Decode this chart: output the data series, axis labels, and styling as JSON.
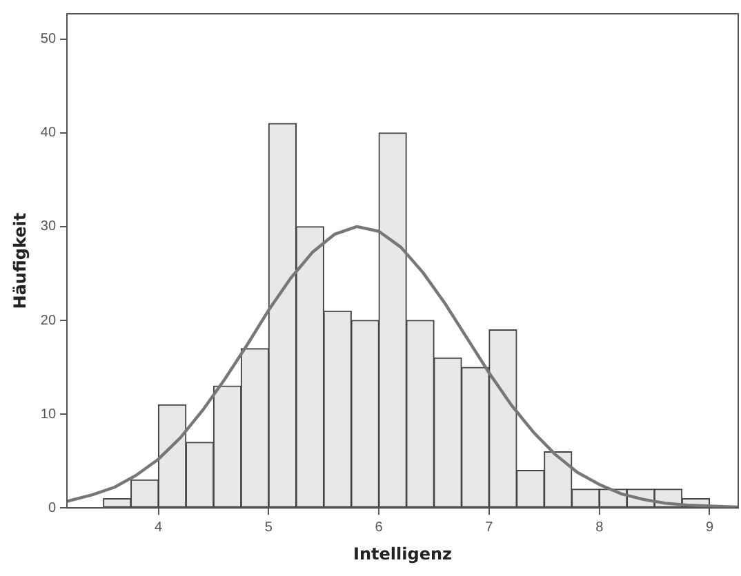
{
  "chart_data": {
    "type": "histogram",
    "xlabel": "Intelligenz",
    "ylabel": "Häufigkeit",
    "bins": [
      3.5,
      3.75,
      4,
      4.25,
      4.5,
      4.75,
      5,
      5.25,
      5.5,
      5.75,
      6,
      6.25,
      6.5,
      6.75,
      7,
      7.25,
      7.5,
      7.75,
      8,
      8.25,
      8.5,
      8.75,
      9
    ],
    "values": [
      1,
      3,
      11,
      7,
      13,
      17,
      41,
      30,
      21,
      20,
      40,
      20,
      16,
      15,
      19,
      4,
      6,
      2,
      2,
      2,
      2,
      1
    ],
    "color": "#e8e8e8",
    "series": [
      {
        "type": "line",
        "color": "#777777",
        "x": [
          3.17,
          3.2,
          3.4,
          3.6,
          3.8,
          4.0,
          4.2,
          4.4,
          4.6,
          4.8,
          5.0,
          5.2,
          5.4,
          5.6,
          5.8,
          6.0,
          6.2,
          6.4,
          6.6,
          6.8,
          7.0,
          7.2,
          7.4,
          7.6,
          7.8,
          8.0,
          8.2,
          8.4,
          8.6,
          8.8,
          9.0,
          9.26
        ],
        "values": [
          0.7,
          0.8,
          1.4,
          2.2,
          3.5,
          5.2,
          7.5,
          10.4,
          13.7,
          17.3,
          21.1,
          24.5,
          27.3,
          29.2,
          30.0,
          29.5,
          27.8,
          25.1,
          21.8,
          18.1,
          14.4,
          11.0,
          8.1,
          5.7,
          3.8,
          2.5,
          1.5,
          0.9,
          0.5,
          0.3,
          0.2,
          0.1
        ]
      }
    ],
    "xlim": [
      3.17,
      9.26
    ],
    "xticks": [
      4,
      5,
      6,
      7,
      8,
      9
    ],
    "ylim": [
      0,
      52.7
    ],
    "yticks": [
      0,
      10,
      20,
      30,
      40,
      50
    ],
    "marker": "none",
    "legend": false,
    "grid": false
  }
}
